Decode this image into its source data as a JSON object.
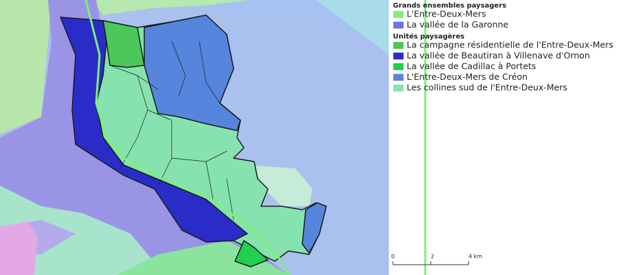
{
  "legend": {
    "groups": [
      {
        "title": "Grands ensembles paysagers",
        "items": [
          {
            "label": "L'Entre-Deux-Mers",
            "color": "#7df07a"
          },
          {
            "label": "La vallée de la Garonne",
            "color": "#7070e8"
          }
        ]
      },
      {
        "title": "Unités paysagères",
        "items": [
          {
            "label": "La campagne résidentielle de l'Entre-Deux-Mers",
            "color": "#4cc85a"
          },
          {
            "label": "La vallée de Beautiran à Villenave d'Ornon",
            "color": "#2a2cc8"
          },
          {
            "label": "La vallée de Cadillac à Portets",
            "color": "#22d050"
          },
          {
            "label": "L'Entre-Deux-Mers de Créon",
            "color": "#5585dc"
          },
          {
            "label": "Les collines sud de l'Entre-Deux-Mers",
            "color": "#86e2ae"
          }
        ]
      }
    ]
  },
  "scale": {
    "labels": [
      "0",
      "2",
      "4 km"
    ]
  }
}
